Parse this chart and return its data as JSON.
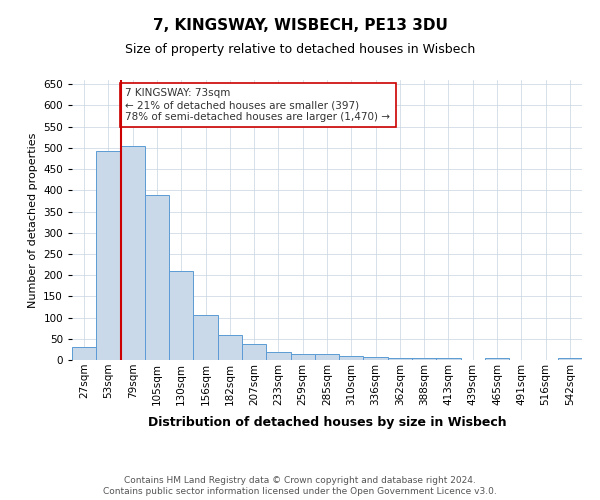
{
  "title": "7, KINGSWAY, WISBECH, PE13 3DU",
  "subtitle": "Size of property relative to detached houses in Wisbech",
  "xlabel": "Distribution of detached houses by size in Wisbech",
  "ylabel": "Number of detached properties",
  "categories": [
    "27sqm",
    "53sqm",
    "79sqm",
    "105sqm",
    "130sqm",
    "156sqm",
    "182sqm",
    "207sqm",
    "233sqm",
    "259sqm",
    "285sqm",
    "310sqm",
    "336sqm",
    "362sqm",
    "388sqm",
    "413sqm",
    "439sqm",
    "465sqm",
    "491sqm",
    "516sqm",
    "542sqm"
  ],
  "values": [
    31,
    493,
    505,
    390,
    210,
    107,
    58,
    38,
    20,
    15,
    13,
    10,
    8,
    5,
    4,
    4,
    1,
    4,
    1,
    1,
    5
  ],
  "bar_color": "#c9d9ea",
  "bar_edge_color": "#5b9bd5",
  "annotation_text": "7 KINGSWAY: 73sqm\n← 21% of detached houses are smaller (397)\n78% of semi-detached houses are larger (1,470) →",
  "annotation_box_color": "#ffffff",
  "annotation_box_edge_color": "#cc0000",
  "annotation_text_color": "#333333",
  "vline_color": "#cc0000",
  "footer_line1": "Contains HM Land Registry data © Crown copyright and database right 2024.",
  "footer_line2": "Contains public sector information licensed under the Open Government Licence v3.0.",
  "ylim": [
    0,
    660
  ],
  "yticks": [
    0,
    50,
    100,
    150,
    200,
    250,
    300,
    350,
    400,
    450,
    500,
    550,
    600,
    650
  ],
  "background_color": "#ffffff",
  "grid_color": "#c8d4e0",
  "title_fontsize": 11,
  "subtitle_fontsize": 9,
  "xlabel_fontsize": 9,
  "ylabel_fontsize": 8,
  "tick_fontsize": 7.5,
  "footer_fontsize": 6.5
}
